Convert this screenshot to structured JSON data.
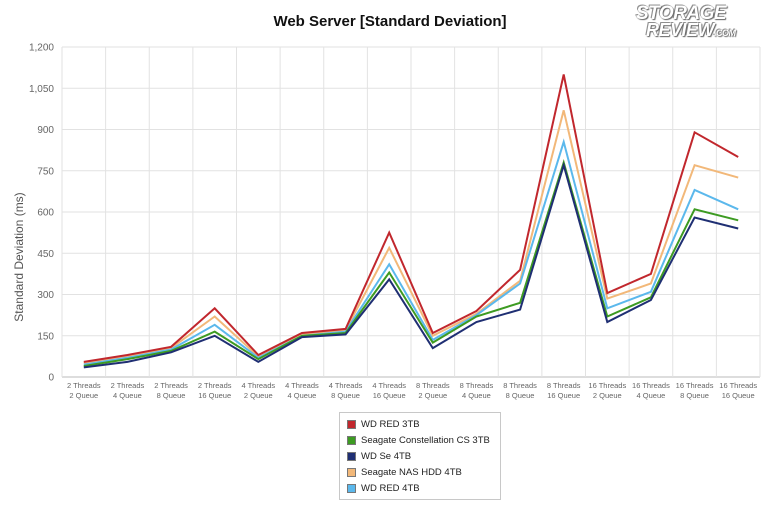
{
  "logo": {
    "line1": "STORAGE",
    "line2": "REVIEW",
    "suffix": ".COM"
  },
  "chart_data": {
    "type": "line",
    "title": "Web Server [Standard Deviation]",
    "xlabel": "",
    "ylabel": "Standard Deviation (ms)",
    "ylim": [
      0,
      1200
    ],
    "yticks": [
      "0",
      "150",
      "300",
      "450",
      "600",
      "750",
      "900",
      "1,050",
      "1,200"
    ],
    "ytick_values": [
      0,
      150,
      300,
      450,
      600,
      750,
      900,
      1050,
      1200
    ],
    "grid": true,
    "legend_position": "bottom",
    "categories": [
      [
        "2 Threads",
        "2 Queue"
      ],
      [
        "2 Threads",
        "4 Queue"
      ],
      [
        "2 Threads",
        "8 Queue"
      ],
      [
        "2 Threads",
        "16 Queue"
      ],
      [
        "4 Threads",
        "2 Queue"
      ],
      [
        "4 Threads",
        "4 Queue"
      ],
      [
        "4 Threads",
        "8 Queue"
      ],
      [
        "4 Threads",
        "16 Queue"
      ],
      [
        "8 Threads",
        "2 Queue"
      ],
      [
        "8 Threads",
        "4 Queue"
      ],
      [
        "8 Threads",
        "8 Queue"
      ],
      [
        "8 Threads",
        "16 Queue"
      ],
      [
        "16 Threads",
        "2 Queue"
      ],
      [
        "16 Threads",
        "4 Queue"
      ],
      [
        "16 Threads",
        "8 Queue"
      ],
      [
        "16 Threads",
        "16 Queue"
      ]
    ],
    "series": [
      {
        "name": "WD RED 3TB",
        "color": "#c1272d",
        "values": [
          55,
          80,
          110,
          250,
          80,
          160,
          175,
          525,
          160,
          240,
          390,
          1100,
          305,
          375,
          890,
          800
        ]
      },
      {
        "name": "Seagate Constellation CS 3TB",
        "color": "#3d9b22",
        "values": [
          40,
          65,
          95,
          165,
          65,
          150,
          160,
          380,
          125,
          220,
          270,
          780,
          220,
          290,
          610,
          570
        ]
      },
      {
        "name": "WD Se 4TB",
        "color": "#1f2f73",
        "values": [
          35,
          55,
          90,
          150,
          55,
          145,
          155,
          355,
          105,
          200,
          245,
          770,
          200,
          280,
          580,
          540
        ]
      },
      {
        "name": "Seagate NAS HDD 4TB",
        "color": "#f2b879",
        "values": [
          50,
          75,
          105,
          220,
          75,
          155,
          170,
          470,
          150,
          230,
          350,
          970,
          285,
          340,
          770,
          725
        ]
      },
      {
        "name": "WD RED 4TB",
        "color": "#5bb8ec",
        "values": [
          45,
          70,
          100,
          190,
          70,
          150,
          165,
          410,
          135,
          225,
          340,
          855,
          250,
          310,
          680,
          610
        ]
      }
    ],
    "legend_order": [
      0,
      1,
      2,
      3,
      4
    ]
  }
}
